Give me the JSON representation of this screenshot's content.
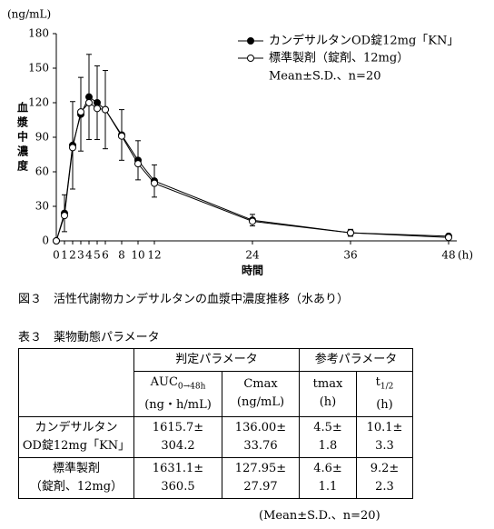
{
  "chart_data": {
    "type": "line",
    "y_unit": "(ng/mL)",
    "y_label": "血漿中濃度",
    "x_label": "時間",
    "x_unit": "(h)",
    "x": [
      0,
      1,
      2,
      3,
      4,
      5,
      6,
      8,
      10,
      12,
      24,
      36,
      48
    ],
    "series": [
      {
        "name": "カンデサルタンOD錠12mg「KN」",
        "color": "#000",
        "marker": "filled",
        "values": [
          0,
          24,
          83,
          110,
          125,
          120,
          114,
          92,
          70,
          52,
          18,
          7,
          4
        ],
        "errors": [
          0,
          16,
          38,
          32,
          37,
          32,
          34,
          22,
          17,
          14,
          5,
          3,
          2
        ]
      },
      {
        "name": "標準製剤（錠剤、12mg）",
        "color": "#000",
        "marker": "open",
        "values": [
          0,
          22,
          81,
          112,
          120,
          115,
          114,
          91,
          67,
          50,
          17,
          7,
          3
        ]
      }
    ],
    "note": "Mean±S.D.、n=20",
    "xlim": [
      0,
      49
    ],
    "xticks": [
      0,
      1,
      2,
      3,
      4,
      5,
      6,
      8,
      10,
      12,
      24,
      36,
      48
    ],
    "ylim": [
      0,
      180
    ],
    "yticks": [
      0,
      30,
      60,
      90,
      120,
      150,
      180
    ],
    "caption": "図３　活性代謝物カンデサルタンの血漿中濃度推移（水あり）"
  },
  "table": {
    "title": "表３　薬物動態パラメータ",
    "groups": [
      "判定パラメータ",
      "参考パラメータ"
    ],
    "columns": [
      [
        "AUC",
        "0→48h",
        "(ng・h/mL)"
      ],
      [
        "Cmax",
        "",
        "(ng/mL)"
      ],
      [
        "tmax",
        "",
        "(h)"
      ],
      [
        "t",
        "1/2",
        "(h)"
      ]
    ],
    "rows": [
      {
        "label": [
          "カンデサルタン",
          "OD錠12mg「KN」"
        ],
        "cells": [
          [
            "1615.7±",
            "304.2"
          ],
          [
            "136.00±",
            "33.76"
          ],
          [
            "4.5±",
            "1.8"
          ],
          [
            "10.1±",
            "3.3"
          ]
        ]
      },
      {
        "label": [
          "標準製剤",
          "（錠剤、12mg）"
        ],
        "cells": [
          [
            "1631.1±",
            "360.5"
          ],
          [
            "127.95±",
            "27.97"
          ],
          [
            "4.6±",
            "1.1"
          ],
          [
            "9.2±",
            "2.3"
          ]
        ]
      }
    ],
    "footnote": "(Mean±S.D.、n=20)"
  }
}
